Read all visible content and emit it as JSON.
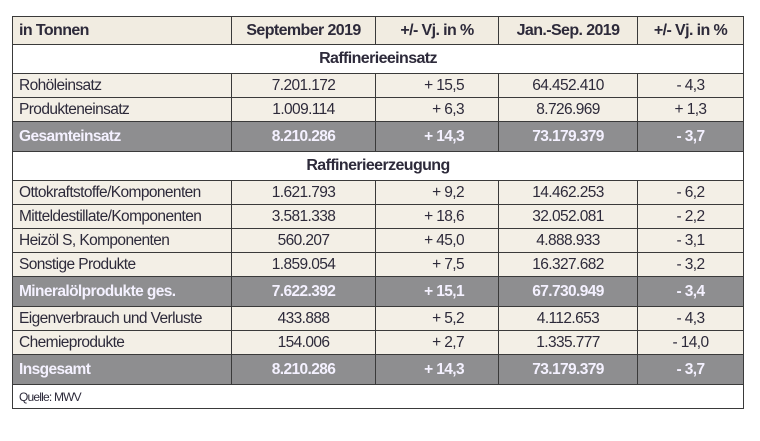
{
  "table": {
    "headers": [
      "in Tonnen",
      "September 2019",
      "+/- Vj. in %",
      "Jan.-Sep. 2019",
      "+/- Vj. in %"
    ],
    "sections": [
      {
        "title": "Raffinerieeinsatz",
        "rows": [
          {
            "label": "Rohöleinsatz",
            "sep": "7.201.172",
            "sep_change": "+ 15,5",
            "ytd": "64.452.410",
            "ytd_change": "- 4,3"
          },
          {
            "label": "Produkteneinsatz",
            "sep": "1.009.114",
            "sep_change": "+ 6,3",
            "ytd": "8.726.969",
            "ytd_change": "+ 1,3"
          }
        ],
        "total": {
          "label": "Gesamteinsatz",
          "sep": "8.210.286",
          "sep_change": "+ 14,3",
          "ytd": "73.179.379",
          "ytd_change": "- 3,7"
        }
      },
      {
        "title": "Raffinerieerzeugung",
        "rows": [
          {
            "label": "Ottokraftstoffe/Komponenten",
            "sep": "1.621.793",
            "sep_change": "+ 9,2",
            "ytd": "14.462.253",
            "ytd_change": "- 6,2"
          },
          {
            "label": "Mitteldestillate/Komponenten",
            "sep": "3.581.338",
            "sep_change": "+ 18,6",
            "ytd": "32.052.081",
            "ytd_change": "- 2,2"
          },
          {
            "label": "Heizöl S, Komponenten",
            "sep": "560.207",
            "sep_change": "+ 45,0",
            "ytd": "4.888.933",
            "ytd_change": "- 3,1"
          },
          {
            "label": "Sonstige Produkte",
            "sep": "1.859.054",
            "sep_change": "+ 7,5",
            "ytd": "16.327.682",
            "ytd_change": "- 3,2"
          }
        ],
        "total": {
          "label": "Mineralölprodukte ges.",
          "sep": "7.622.392",
          "sep_change": "+ 15,1",
          "ytd": "67.730.949",
          "ytd_change": "- 3,4"
        },
        "extra_rows": [
          {
            "label": "Eigenverbrauch und Verluste",
            "sep": "433.888",
            "sep_change": "+ 5,2",
            "ytd": "4.112.653",
            "ytd_change": "- 4,3"
          },
          {
            "label": "Chemieprodukte",
            "sep": "154.006",
            "sep_change": "+ 2,7",
            "ytd": "1.335.777",
            "ytd_change": "- 14,0"
          }
        ],
        "grand_total": {
          "label": "Insgesamt",
          "sep": "8.210.286",
          "sep_change": "+ 14,3",
          "ytd": "73.179.379",
          "ytd_change": "- 3,7"
        }
      }
    ],
    "source": "Quelle: MWV"
  },
  "colors": {
    "header_bg": "#f1ece1",
    "row_bg": "#f3efe6",
    "total_bg": "#8e8e90",
    "total_text": "#f4f1ff",
    "text": "#2d2a3a"
  }
}
